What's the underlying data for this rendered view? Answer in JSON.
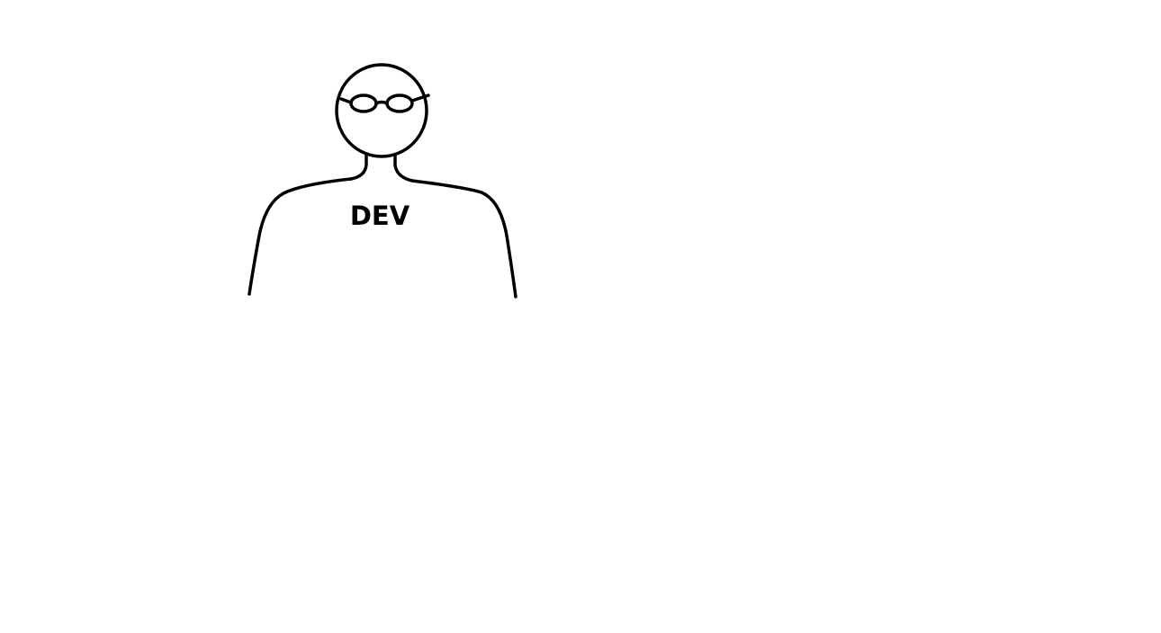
{
  "figure": {
    "shirt_label": "DEV",
    "stroke_color": "#000000",
    "background_color": "#ffffff"
  }
}
